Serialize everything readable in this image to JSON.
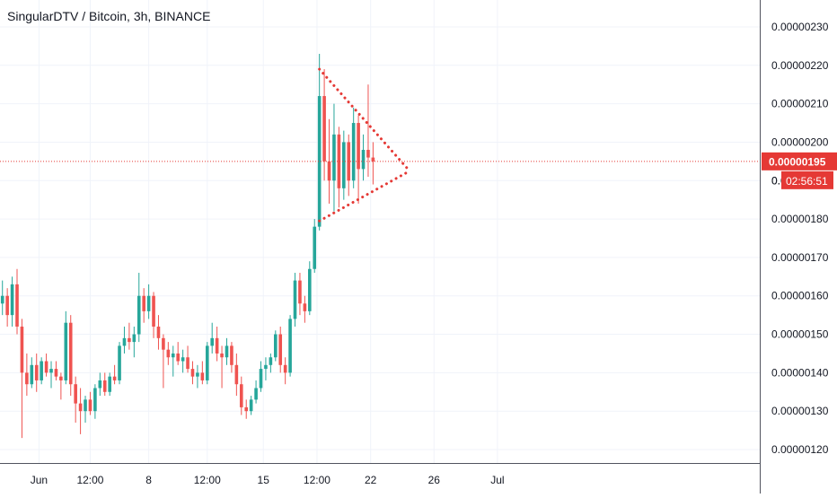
{
  "header": {
    "title": "SingularDTV / Bitcoin, 3h, BINANCE"
  },
  "chart_data": {
    "type": "candlestick",
    "symbol": "SingularDTV / Bitcoin",
    "interval": "3h",
    "exchange": "BINANCE",
    "y_ticks": [
      "0.00000230",
      "0.00000220",
      "0.00000210",
      "0.00000200",
      "0.00000190",
      "0.00000180",
      "0.00000170",
      "0.00000160",
      "0.00000150",
      "0.00000140",
      "0.00000130",
      "0.00000120"
    ],
    "y_tick_values": [
      2.3,
      2.2,
      2.1,
      2.0,
      1.9,
      1.8,
      1.7,
      1.6,
      1.5,
      1.4,
      1.3,
      1.2
    ],
    "y_tick_partial": "0.",
    "ylim": [
      1.165,
      2.37
    ],
    "y_unit_scale": "1e-6 BTC",
    "x_ticks": [
      "Jun",
      "12:00",
      "8",
      "12:00",
      "15",
      "12:00",
      "22",
      "26",
      "Jul"
    ],
    "x_tick_bar_index": [
      7.5,
      18,
      30,
      42,
      53.5,
      64.5,
      75.5,
      88.5,
      101.5
    ],
    "x_range_bars": [
      0,
      110
    ],
    "current_price": {
      "label": "0.00000195",
      "value": 1.95,
      "countdown": "02:56:51"
    },
    "colors": {
      "up": "#26a69a",
      "down": "#ef5350",
      "pattern": "#e53935",
      "price_line": "#e53935",
      "grid": "#f0f3fa"
    },
    "candles": [
      [
        1.58,
        1.64,
        1.55,
        1.6
      ],
      [
        1.6,
        1.62,
        1.52,
        1.55
      ],
      [
        1.55,
        1.65,
        1.52,
        1.63
      ],
      [
        1.63,
        1.67,
        1.5,
        1.52
      ],
      [
        1.52,
        1.54,
        1.23,
        1.4
      ],
      [
        1.4,
        1.45,
        1.34,
        1.37
      ],
      [
        1.37,
        1.44,
        1.36,
        1.42
      ],
      [
        1.42,
        1.45,
        1.35,
        1.38
      ],
      [
        1.38,
        1.44,
        1.37,
        1.43
      ],
      [
        1.43,
        1.45,
        1.39,
        1.4
      ],
      [
        1.4,
        1.43,
        1.36,
        1.41
      ],
      [
        1.41,
        1.43,
        1.38,
        1.39
      ],
      [
        1.39,
        1.4,
        1.33,
        1.38
      ],
      [
        1.38,
        1.56,
        1.37,
        1.53
      ],
      [
        1.53,
        1.55,
        1.34,
        1.37
      ],
      [
        1.37,
        1.39,
        1.27,
        1.32
      ],
      [
        1.32,
        1.36,
        1.24,
        1.3
      ],
      [
        1.3,
        1.34,
        1.27,
        1.33
      ],
      [
        1.33,
        1.35,
        1.29,
        1.3
      ],
      [
        1.3,
        1.37,
        1.28,
        1.36
      ],
      [
        1.36,
        1.4,
        1.34,
        1.38
      ],
      [
        1.38,
        1.4,
        1.34,
        1.35
      ],
      [
        1.35,
        1.4,
        1.34,
        1.39
      ],
      [
        1.39,
        1.42,
        1.37,
        1.38
      ],
      [
        1.38,
        1.48,
        1.37,
        1.47
      ],
      [
        1.47,
        1.52,
        1.45,
        1.49
      ],
      [
        1.49,
        1.53,
        1.46,
        1.48
      ],
      [
        1.48,
        1.52,
        1.44,
        1.5
      ],
      [
        1.5,
        1.66,
        1.48,
        1.6
      ],
      [
        1.6,
        1.62,
        1.53,
        1.56
      ],
      [
        1.56,
        1.63,
        1.54,
        1.6
      ],
      [
        1.6,
        1.61,
        1.49,
        1.52
      ],
      [
        1.52,
        1.55,
        1.46,
        1.49
      ],
      [
        1.49,
        1.5,
        1.36,
        1.46
      ],
      [
        1.46,
        1.48,
        1.42,
        1.44
      ],
      [
        1.44,
        1.47,
        1.39,
        1.45
      ],
      [
        1.45,
        1.48,
        1.42,
        1.43
      ],
      [
        1.43,
        1.46,
        1.4,
        1.44
      ],
      [
        1.44,
        1.47,
        1.4,
        1.41
      ],
      [
        1.41,
        1.43,
        1.37,
        1.39
      ],
      [
        1.39,
        1.42,
        1.36,
        1.4
      ],
      [
        1.4,
        1.43,
        1.37,
        1.38
      ],
      [
        1.38,
        1.48,
        1.37,
        1.47
      ],
      [
        1.47,
        1.53,
        1.45,
        1.49
      ],
      [
        1.49,
        1.52,
        1.43,
        1.45
      ],
      [
        1.45,
        1.47,
        1.36,
        1.44
      ],
      [
        1.44,
        1.49,
        1.42,
        1.47
      ],
      [
        1.47,
        1.48,
        1.4,
        1.42
      ],
      [
        1.42,
        1.45,
        1.34,
        1.37
      ],
      [
        1.37,
        1.39,
        1.29,
        1.31
      ],
      [
        1.31,
        1.33,
        1.28,
        1.3
      ],
      [
        1.3,
        1.34,
        1.29,
        1.33
      ],
      [
        1.33,
        1.38,
        1.32,
        1.36
      ],
      [
        1.36,
        1.43,
        1.35,
        1.41
      ],
      [
        1.41,
        1.44,
        1.38,
        1.42
      ],
      [
        1.42,
        1.45,
        1.4,
        1.44
      ],
      [
        1.44,
        1.51,
        1.43,
        1.5
      ],
      [
        1.5,
        1.52,
        1.4,
        1.42
      ],
      [
        1.42,
        1.44,
        1.37,
        1.4
      ],
      [
        1.4,
        1.55,
        1.39,
        1.54
      ],
      [
        1.54,
        1.66,
        1.52,
        1.64
      ],
      [
        1.64,
        1.66,
        1.55,
        1.58
      ],
      [
        1.58,
        1.6,
        1.53,
        1.56
      ],
      [
        1.56,
        1.69,
        1.55,
        1.67
      ],
      [
        1.67,
        1.8,
        1.66,
        1.78
      ],
      [
        1.78,
        2.23,
        1.77,
        2.12
      ],
      [
        2.12,
        2.19,
        1.9,
        1.95
      ],
      [
        1.95,
        2.06,
        1.84,
        1.9
      ],
      [
        1.9,
        2.1,
        1.82,
        2.02
      ],
      [
        2.02,
        2.04,
        1.83,
        1.88
      ],
      [
        1.88,
        2.03,
        1.85,
        2.0
      ],
      [
        2.0,
        2.02,
        1.86,
        1.9
      ],
      [
        1.9,
        2.09,
        1.88,
        2.05
      ],
      [
        2.05,
        2.07,
        1.84,
        1.93
      ],
      [
        1.93,
        2.02,
        1.9,
        1.98
      ],
      [
        1.98,
        2.15,
        1.91,
        1.96
      ],
      [
        1.96,
        2.0,
        1.89,
        1.95
      ]
    ],
    "pattern": {
      "name": "symmetrical triangle",
      "upper_line": {
        "from": [
          65,
          2.19
        ],
        "to": [
          83.5,
          1.925
        ]
      },
      "lower_line": {
        "from": [
          65,
          1.795
        ],
        "to": [
          83.5,
          1.925
        ]
      }
    }
  }
}
